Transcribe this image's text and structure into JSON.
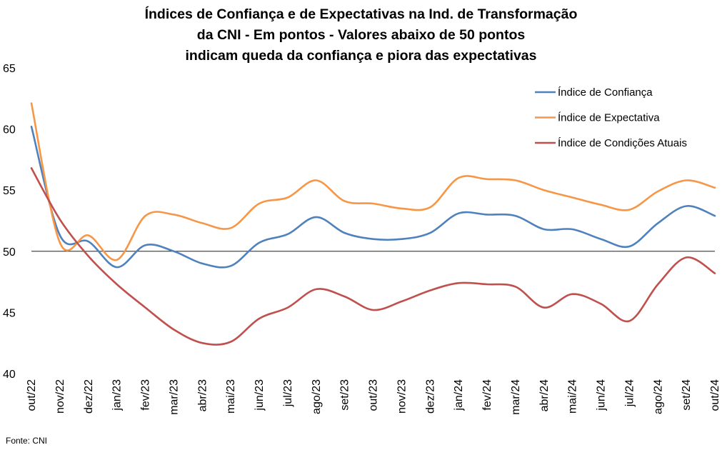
{
  "chart_data": {
    "type": "line",
    "title_lines": [
      "Índices de Confiança e de Expectativas na Ind. de Transformação",
      "da CNI - Em pontos - Valores abaixo de 50 pontos",
      "indicam queda da confiança e piora das expectativas"
    ],
    "ylim": [
      40,
      65
    ],
    "yticks": [
      "65",
      "60",
      "55",
      "50",
      "45",
      "40"
    ],
    "reference_line": 50,
    "grid": false,
    "legend_position": "top-right",
    "categories": [
      "out/22",
      "nov/22",
      "dez/22",
      "jan/23",
      "fev/23",
      "mar/23",
      "abr/23",
      "mai/23",
      "jun/23",
      "jul/23",
      "ago/23",
      "set/23",
      "out/23",
      "nov/23",
      "dez/23",
      "jan/24",
      "fev/24",
      "mar/24",
      "abr/24",
      "mai/24",
      "jun/24",
      "jul/24",
      "ago/24",
      "set/24",
      "out/24"
    ],
    "series": [
      {
        "name": "Índice de Confiança",
        "color": "#4F81BD",
        "values": [
          60.2,
          51.3,
          50.8,
          48.7,
          50.5,
          50.0,
          49.0,
          48.8,
          50.7,
          51.4,
          52.8,
          51.5,
          51.0,
          51.0,
          51.5,
          53.1,
          53.0,
          52.9,
          51.8,
          51.8,
          51.0,
          50.4,
          52.3,
          53.7,
          52.9
        ]
      },
      {
        "name": "Índice de Expectativa",
        "color": "#F79646",
        "values": [
          62.1,
          50.7,
          51.3,
          49.3,
          52.9,
          53.0,
          52.3,
          51.9,
          53.9,
          54.4,
          55.8,
          54.1,
          53.9,
          53.5,
          53.6,
          56.0,
          55.9,
          55.8,
          55.0,
          54.4,
          53.8,
          53.4,
          54.9,
          55.8,
          55.2
        ]
      },
      {
        "name": "Índice de Condições Atuais",
        "color": "#C0504D",
        "values": [
          56.8,
          52.6,
          49.6,
          47.3,
          45.4,
          43.6,
          42.5,
          42.6,
          44.5,
          45.4,
          46.9,
          46.3,
          45.2,
          45.9,
          46.8,
          47.4,
          47.3,
          47.1,
          45.4,
          46.5,
          45.7,
          44.3,
          47.3,
          49.5,
          48.2
        ]
      }
    ],
    "source": "Fonte: CNI"
  }
}
